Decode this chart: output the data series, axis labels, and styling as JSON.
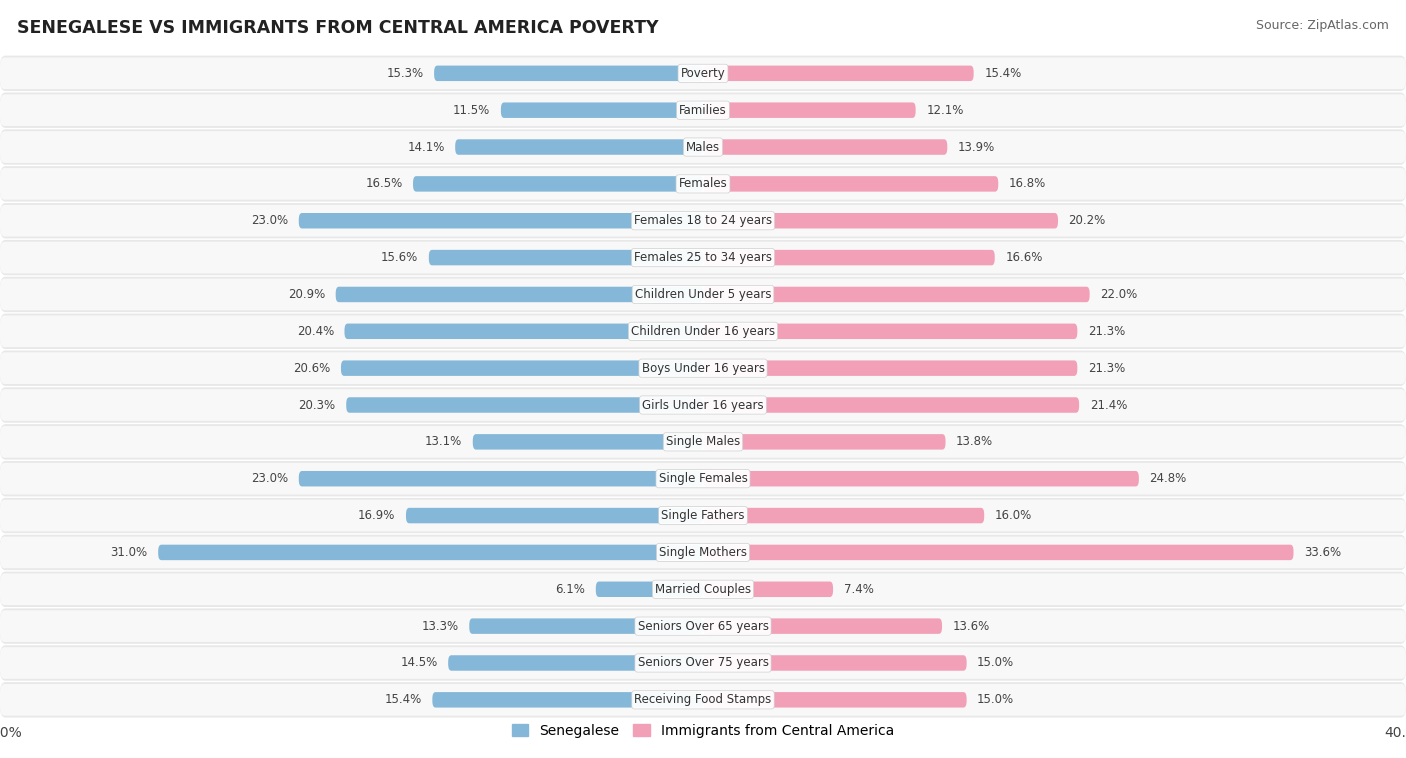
{
  "title": "SENEGALESE VS IMMIGRANTS FROM CENTRAL AMERICA POVERTY",
  "source": "Source: ZipAtlas.com",
  "categories": [
    "Poverty",
    "Families",
    "Males",
    "Females",
    "Females 18 to 24 years",
    "Females 25 to 34 years",
    "Children Under 5 years",
    "Children Under 16 years",
    "Boys Under 16 years",
    "Girls Under 16 years",
    "Single Males",
    "Single Females",
    "Single Fathers",
    "Single Mothers",
    "Married Couples",
    "Seniors Over 65 years",
    "Seniors Over 75 years",
    "Receiving Food Stamps"
  ],
  "senegalese": [
    15.3,
    11.5,
    14.1,
    16.5,
    23.0,
    15.6,
    20.9,
    20.4,
    20.6,
    20.3,
    13.1,
    23.0,
    16.9,
    31.0,
    6.1,
    13.3,
    14.5,
    15.4
  ],
  "immigrants": [
    15.4,
    12.1,
    13.9,
    16.8,
    20.2,
    16.6,
    22.0,
    21.3,
    21.3,
    21.4,
    13.8,
    24.8,
    16.0,
    33.6,
    7.4,
    13.6,
    15.0,
    15.0
  ],
  "blue_color": "#85b8d8",
  "pink_color": "#f2a0b8",
  "bg_outer": "#e8e8e8",
  "bg_inner": "#f8f8f8",
  "axis_max": 40.0,
  "legend_blue": "Senegalese",
  "legend_pink": "Immigrants from Central America",
  "title_fontsize": 12.5,
  "source_fontsize": 9,
  "label_fontsize": 8.5,
  "value_fontsize": 8.5
}
